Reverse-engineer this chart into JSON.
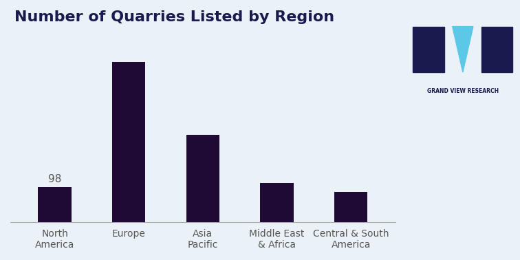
{
  "title": "Number of Quarries Listed by Region",
  "categories": [
    "North\nAmerica",
    "Europe",
    "Asia\nPacific",
    "Middle East\n& Africa",
    "Central & South\nAmerica"
  ],
  "values": [
    98,
    450,
    245,
    110,
    85
  ],
  "bar_color": "#1e0a35",
  "label_value": 98,
  "label_index": 0,
  "background_color": "#eaf2f8",
  "title_color": "#1a1a4e",
  "tick_color": "#555555",
  "title_fontsize": 16,
  "label_fontsize": 11,
  "tick_fontsize": 10
}
